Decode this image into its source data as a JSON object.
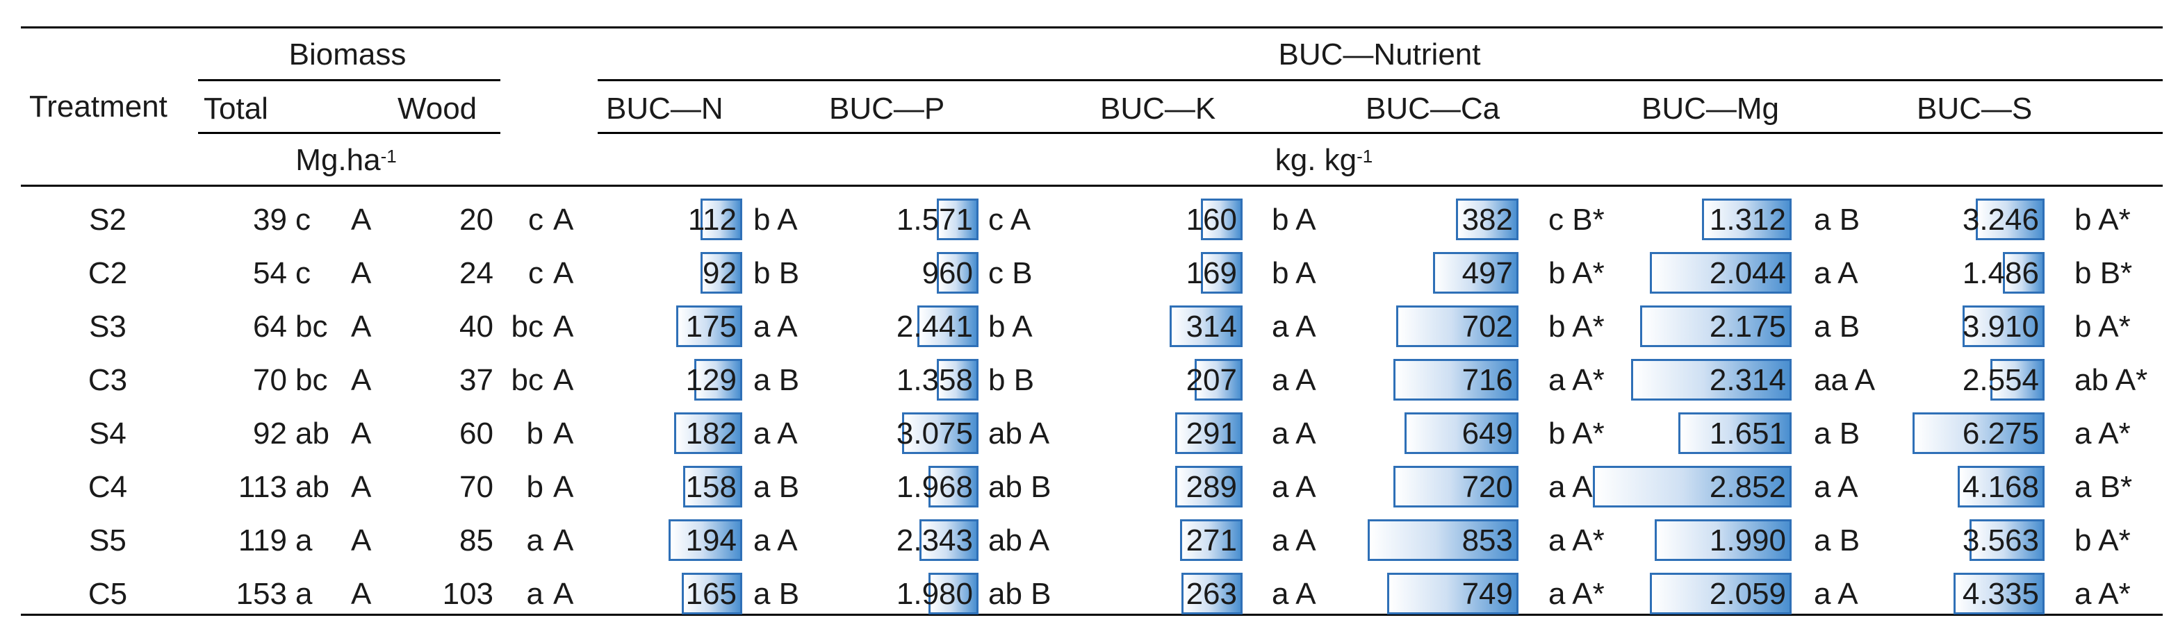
{
  "header": {
    "biomass": "Biomass",
    "buc_nutrient": "BUC—Nutrient",
    "treatment": "Treatment",
    "total": "Total",
    "wood": "Wood",
    "nutrients": [
      "BUC—N",
      "BUC—P",
      "BUC—K",
      "BUC—Ca",
      "BUC—Mg",
      "BUC—S"
    ],
    "unit_biomass": "Mg.ha",
    "unit_biomass_exp": "-1",
    "unit_nutrient": "kg. kg",
    "unit_nutrient_exp": "-1"
  },
  "rows": [
    {
      "treatment": "S2",
      "total": "39",
      "total_l1": "c",
      "total_l2": "A",
      "wood": "20",
      "wood_l1": "c",
      "wood_l2": "A",
      "n": {
        "v": "112",
        "bar": 0.22,
        "l": "b A"
      },
      "p": {
        "v": "1.571",
        "bar": 0.2,
        "l": "c A"
      },
      "k": {
        "v": "160",
        "bar": 0.24,
        "l": "b A"
      },
      "ca": {
        "v": "382",
        "bar": 0.22,
        "l": "c B*"
      },
      "mg": {
        "v": "1.312",
        "bar": 0.38,
        "l": "a B"
      },
      "s": {
        "v": "3.246",
        "bar": 0.52,
        "l": "b A*"
      }
    },
    {
      "treatment": "C2",
      "total": "54",
      "total_l1": "c",
      "total_l2": "A",
      "wood": "24",
      "wood_l1": "c",
      "wood_l2": "A",
      "n": {
        "v": "92",
        "bar": 0.18,
        "l": "b B"
      },
      "p": {
        "v": "960",
        "bar": 0.12,
        "l": "c B"
      },
      "k": {
        "v": "169",
        "bar": 0.26,
        "l": "b A"
      },
      "ca": {
        "v": "497",
        "bar": 0.3,
        "l": "b A*"
      },
      "mg": {
        "v": "2.044",
        "bar": 0.6,
        "l": "a A"
      },
      "s": {
        "v": "1.486",
        "bar": 0.24,
        "l": "b B*"
      }
    },
    {
      "treatment": "S3",
      "total": "64",
      "total_l1": "bc",
      "total_l2": "A",
      "wood": "40",
      "wood_l1": "bc",
      "wood_l2": "A",
      "n": {
        "v": "175",
        "bar": 0.36,
        "l": "a A"
      },
      "p": {
        "v": "2.441",
        "bar": 0.32,
        "l": "b A"
      },
      "k": {
        "v": "314",
        "bar": 0.49,
        "l": "a A"
      },
      "ca": {
        "v": "702",
        "bar": 0.43,
        "l": "b A*"
      },
      "mg": {
        "v": "2.175",
        "bar": 0.64,
        "l": "a B"
      },
      "s": {
        "v": "3.910",
        "bar": 0.62,
        "l": "b A*"
      }
    },
    {
      "treatment": "C3",
      "total": "70",
      "total_l1": "bc",
      "total_l2": "A",
      "wood": "37",
      "wood_l1": "bc",
      "wood_l2": "A",
      "n": {
        "v": "129",
        "bar": 0.26,
        "l": "a B"
      },
      "p": {
        "v": "1.358",
        "bar": 0.18,
        "l": "b B"
      },
      "k": {
        "v": "207",
        "bar": 0.32,
        "l": "a A"
      },
      "ca": {
        "v": "716",
        "bar": 0.44,
        "l": "a A*"
      },
      "mg": {
        "v": "2.314",
        "bar": 0.68,
        "l": "aa A"
      },
      "s": {
        "v": "2.554",
        "bar": 0.41,
        "l": "ab A*"
      }
    },
    {
      "treatment": "S4",
      "total": "92",
      "total_l1": "ab",
      "total_l2": "A",
      "wood": "60",
      "wood_l1": "b",
      "wood_l2": "A",
      "n": {
        "v": "182",
        "bar": 0.37,
        "l": "a A"
      },
      "p": {
        "v": "3.075",
        "bar": 0.4,
        "l": "ab A"
      },
      "k": {
        "v": "291",
        "bar": 0.45,
        "l": "a A"
      },
      "ca": {
        "v": "649",
        "bar": 0.4,
        "l": "b A*"
      },
      "mg": {
        "v": "1.651",
        "bar": 0.48,
        "l": "a B"
      },
      "s": {
        "v": "6.275",
        "bar": 1.0,
        "l": "a A*"
      }
    },
    {
      "treatment": "C4",
      "total": "113",
      "total_l1": "ab",
      "total_l2": "A",
      "wood": "70",
      "wood_l1": "b",
      "wood_l2": "A",
      "n": {
        "v": "158",
        "bar": 0.32,
        "l": "a B"
      },
      "p": {
        "v": "1.968",
        "bar": 0.26,
        "l": "ab B"
      },
      "k": {
        "v": "289",
        "bar": 0.45,
        "l": "a A"
      },
      "ca": {
        "v": "720",
        "bar": 0.44,
        "l": "a A*"
      },
      "mg": {
        "v": "2.852",
        "bar": 0.84,
        "l": "a A"
      },
      "s": {
        "v": "4.168",
        "bar": 0.66,
        "l": "a B*"
      }
    },
    {
      "treatment": "S5",
      "total": "119",
      "total_l1": "a",
      "total_l2": "A",
      "wood": "85",
      "wood_l1": "a",
      "wood_l2": "A",
      "n": {
        "v": "194",
        "bar": 0.4,
        "l": "a A"
      },
      "p": {
        "v": "2.343",
        "bar": 0.31,
        "l": "ab A"
      },
      "k": {
        "v": "271",
        "bar": 0.42,
        "l": "a A"
      },
      "ca": {
        "v": "853",
        "bar": 0.53,
        "l": "a A*"
      },
      "mg": {
        "v": "1.990",
        "bar": 0.58,
        "l": "a B"
      },
      "s": {
        "v": "3.563",
        "bar": 0.57,
        "l": "b A*"
      }
    },
    {
      "treatment": "C5",
      "total": "153",
      "total_l1": "a",
      "total_l2": "A",
      "wood": "103",
      "wood_l1": "a",
      "wood_l2": "A",
      "n": {
        "v": "165",
        "bar": 0.33,
        "l": "a B"
      },
      "p": {
        "v": "1.980",
        "bar": 0.26,
        "l": "ab B"
      },
      "k": {
        "v": "263",
        "bar": 0.41,
        "l": "a A"
      },
      "ca": {
        "v": "749",
        "bar": 0.46,
        "l": "a A*"
      },
      "mg": {
        "v": "2.059",
        "bar": 0.6,
        "l": "a A"
      },
      "s": {
        "v": "4.335",
        "bar": 0.69,
        "l": "a A*"
      }
    }
  ]
}
